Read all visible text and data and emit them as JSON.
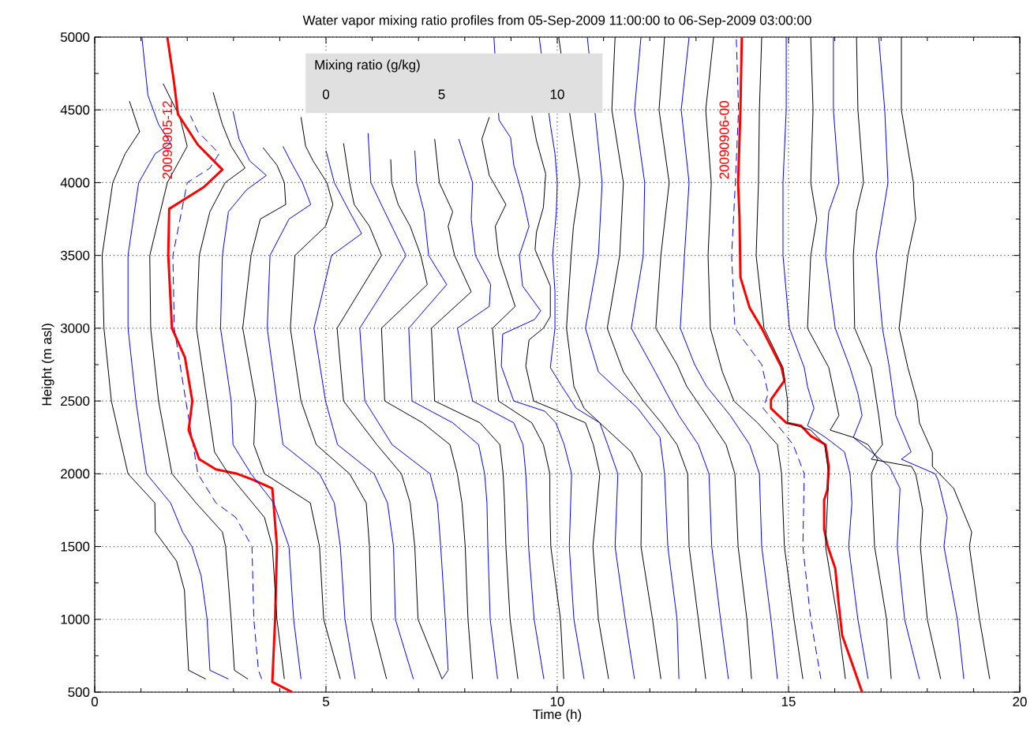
{
  "chart_data": {
    "type": "line",
    "title": "Water vapor mixing ratio profiles from 05-Sep-2009 11:00:00 to 06-Sep-2009 03:00:00",
    "xlabel": "Time (h)",
    "ylabel": "Height (m asl)",
    "xlim": [
      0,
      20
    ],
    "ylim": [
      500,
      5000
    ],
    "xticks": [
      0,
      5,
      10,
      15,
      20
    ],
    "yticks": [
      500,
      1000,
      1500,
      2000,
      2500,
      3000,
      3500,
      4000,
      4500,
      5000
    ],
    "grid": true,
    "marker": "none",
    "line_style": "solid",
    "x2label": "Mixing ratio (g/kg)",
    "x2lim": [
      -10,
      30
    ],
    "x2ticks": [
      0,
      5,
      10
    ],
    "series": [
      {
        "color": "#000000",
        "x": [
          2.4,
          2.03,
          1.97,
          1.94,
          1.77,
          1.54,
          1.31,
          1.3,
          0.72,
          0.36,
          0.2,
          0.16,
          0.39,
          0.66,
          0.97,
          0.75
        ],
        "values": [
          590,
          650,
          1000,
          1200,
          1400,
          1500,
          1600,
          1800,
          2000,
          2500,
          3000,
          3500,
          4000,
          4200,
          4350,
          4560
        ]
      },
      {
        "color": "#0000ff",
        "x": [
          2.89,
          2.49,
          2.43,
          2.3,
          2.1,
          1.9,
          1.64,
          1.12,
          0.89,
          0.72,
          0.72,
          0.95,
          1.31,
          1.64,
          1.38,
          1.15,
          1.02
        ],
        "values": [
          590,
          650,
          1000,
          1300,
          1500,
          1600,
          1800,
          2000,
          2500,
          3000,
          3500,
          4000,
          4200,
          4270,
          4400,
          4600,
          5000
        ]
      },
      {
        "color": "#000000",
        "x": [
          3.31,
          3.02,
          2.95,
          2.83,
          2.76,
          2.19,
          1.67,
          1.38,
          1.21,
          1.19,
          1.57,
          2.0,
          1.84,
          1.48
        ],
        "values": [
          590,
          650,
          1000,
          1500,
          1600,
          1800,
          2000,
          2500,
          3000,
          3500,
          4000,
          4250,
          4450,
          4680
        ]
      },
      {
        "color": "#0000ff",
        "line_style": "dashed",
        "x": [
          3.61,
          3.54,
          3.44,
          3.4,
          3.05,
          2.62,
          2.23,
          1.97,
          1.72,
          1.69,
          2.0,
          2.49,
          2.69,
          2.23,
          2.07
        ],
        "values": [
          590,
          650,
          1000,
          1500,
          1700,
          1800,
          2000,
          2500,
          3000,
          3500,
          4000,
          4100,
          4200,
          4350,
          4460
        ]
      },
      {
        "name": "20090905-12",
        "color": "#ff0000",
        "x": [
          4.27,
          3.84,
          3.9,
          3.94,
          3.84,
          3.41,
          3.08,
          2.62,
          2.26,
          2.03,
          2.11,
          1.95,
          1.67,
          1.59,
          1.61,
          2.36,
          2.76,
          2.23,
          1.8,
          1.71,
          1.57
        ],
        "values": [
          500,
          570,
          1000,
          1500,
          1900,
          1960,
          2000,
          2030,
          2100,
          2300,
          2500,
          2800,
          3000,
          3500,
          3820,
          3970,
          4090,
          4260,
          4470,
          4700,
          5000
        ]
      },
      {
        "color": "#000000",
        "x": [
          4.1,
          3.94,
          3.84,
          3.67,
          3.41,
          2.89,
          2.59,
          2.43,
          2.2,
          2.26,
          2.49,
          2.82,
          3.25,
          2.95,
          2.76,
          2.56
        ],
        "values": [
          590,
          1000,
          1500,
          1700,
          1800,
          2000,
          2150,
          2500,
          3000,
          3500,
          3800,
          4000,
          4100,
          4250,
          4400,
          4620
        ]
      },
      {
        "color": "#0000ff",
        "x": [
          4.46,
          4.3,
          4.2,
          3.87,
          3.38,
          2.99,
          2.95,
          2.72,
          2.76,
          2.89,
          3.28,
          3.71,
          3.35,
          3.12,
          2.99
        ],
        "values": [
          590,
          1000,
          1500,
          1800,
          2000,
          2200,
          2500,
          3000,
          3500,
          3800,
          3950,
          4050,
          4150,
          4300,
          4490
        ]
      },
      {
        "color": "#000000",
        "x": [
          5.31,
          4.95,
          4.86,
          4.66,
          3.67,
          3.44,
          3.48,
          3.2,
          3.38,
          3.58,
          4.13,
          4.1,
          3.94,
          3.64
        ],
        "values": [
          590,
          1000,
          1500,
          1800,
          2000,
          2200,
          2500,
          3000,
          3500,
          3750,
          3850,
          4000,
          4120,
          4240
        ]
      },
      {
        "color": "#0000ff",
        "x": [
          5.63,
          5.41,
          5.31,
          5.18,
          4.86,
          4.07,
          3.94,
          3.73,
          3.79,
          4.2,
          4.67,
          4.49,
          4.23,
          4.07
        ],
        "values": [
          590,
          1000,
          1500,
          1800,
          2000,
          2200,
          2500,
          3000,
          3500,
          3750,
          3850,
          4000,
          4150,
          4250
        ]
      },
      {
        "color": "#000000",
        "x": [
          6.31,
          5.98,
          5.94,
          5.87,
          5.51,
          4.79,
          4.46,
          4.23,
          4.33,
          4.99,
          5.15,
          5.02,
          4.72,
          4.56,
          4.46
        ],
        "values": [
          590,
          1000,
          1500,
          1800,
          2000,
          2200,
          2500,
          3000,
          3500,
          3700,
          3850,
          4000,
          4150,
          4250,
          4450
        ]
      },
      {
        "color": "#0000ff",
        "x": [
          6.89,
          6.5,
          6.46,
          6.33,
          6.04,
          5.25,
          4.99,
          4.74,
          5.12,
          5.77,
          5.51,
          5.18,
          5.0
        ],
        "values": [
          590,
          1000,
          1500,
          1800,
          2000,
          2200,
          2500,
          3000,
          3500,
          3650,
          3800,
          4000,
          4220
        ]
      },
      {
        "color": "#000000",
        "x": [
          7.51,
          6.99,
          6.92,
          6.82,
          6.63,
          6.1,
          5.38,
          5.24,
          6.2,
          5.94,
          5.61,
          5.51,
          5.38
        ],
        "values": [
          590,
          1000,
          1500,
          1800,
          2000,
          2200,
          2500,
          3000,
          3500,
          3700,
          3850,
          4000,
          4270
        ]
      },
      {
        "color": "#0000ff",
        "x": [
          7.51,
          7.64,
          7.58,
          7.48,
          7.41,
          7.25,
          6.43,
          5.84,
          5.73,
          6.73,
          6.5,
          6.27,
          5.97,
          5.91
        ],
        "values": [
          590,
          650,
          1000,
          1500,
          1800,
          2000,
          2200,
          2500,
          3000,
          3500,
          3650,
          3800,
          4000,
          4340
        ]
      },
      {
        "color": "#000000",
        "x": [
          8.17,
          8.07,
          8.01,
          7.94,
          7.84,
          7.68,
          7.09,
          6.27,
          6.2,
          7.19,
          7.05,
          6.82,
          6.56,
          6.42,
          6.4
        ],
        "values": [
          590,
          1000,
          1500,
          1800,
          2000,
          2200,
          2350,
          2500,
          3000,
          3300,
          3500,
          3700,
          3850,
          4000,
          4160
        ]
      },
      {
        "color": "#0000ff",
        "x": [
          8.71,
          8.55,
          8.5,
          8.48,
          8.43,
          8.3,
          7.74,
          6.86,
          6.79,
          7.61,
          7.22,
          7.12,
          6.96,
          6.92
        ],
        "values": [
          590,
          1000,
          1500,
          1800,
          2000,
          2200,
          2350,
          2500,
          3000,
          3300,
          3500,
          3800,
          4000,
          4220
        ]
      },
      {
        "color": "#000000",
        "x": [
          9.15,
          8.98,
          8.89,
          8.86,
          8.83,
          8.76,
          8.33,
          7.35,
          7.28,
          8.14,
          7.78,
          7.64,
          7.74,
          7.45,
          7.35
        ],
        "values": [
          590,
          1000,
          1500,
          1800,
          2000,
          2200,
          2350,
          2500,
          3000,
          3250,
          3500,
          3700,
          3800,
          4000,
          4300
        ]
      },
      {
        "color": "#0000ff",
        "x": [
          9.71,
          9.5,
          9.38,
          9.35,
          9.32,
          9.26,
          9.06,
          8.17,
          7.84,
          8.53,
          8.56,
          8.23,
          8.14,
          8.17,
          7.87
        ],
        "values": [
          590,
          1000,
          1500,
          1800,
          2000,
          2200,
          2350,
          2500,
          3000,
          3150,
          3300,
          3500,
          3750,
          4000,
          4300
        ]
      },
      {
        "color": "#000000",
        "x": [
          10.14,
          10.07,
          9.86,
          9.84,
          9.84,
          9.7,
          9.45,
          8.73,
          8.6,
          9.09,
          8.73,
          8.66,
          8.89,
          8.53,
          8.37,
          8.53
        ],
        "values": [
          590,
          1000,
          1500,
          1800,
          2000,
          2200,
          2350,
          2500,
          3000,
          3150,
          3500,
          3700,
          3850,
          4050,
          4300,
          4450
        ]
      },
      {
        "color": "#0000ff",
        "x": [
          10.58,
          10.36,
          10.26,
          10.31,
          10.15,
          9.97,
          9.73,
          9.06,
          8.79,
          8.82,
          9.51,
          9.64,
          9.25,
          9.18,
          9.39,
          9.25,
          9.06,
          8.99,
          8.74,
          8.63
        ],
        "values": [
          590,
          1000,
          1500,
          2000,
          2200,
          2350,
          2430,
          2500,
          2740,
          2960,
          3060,
          3120,
          3290,
          3500,
          3700,
          3910,
          4120,
          4310,
          4430,
          5000
        ]
      },
      {
        "color": "#000000",
        "x": [
          11.11,
          10.89,
          10.77,
          10.92,
          10.78,
          10.61,
          10.1,
          9.49,
          9.32,
          9.39,
          9.7,
          9.85,
          9.85,
          9.52,
          9.55,
          9.7,
          9.75,
          9.55,
          9.45
        ],
        "values": [
          590,
          1000,
          1500,
          2000,
          2200,
          2350,
          2420,
          2500,
          2740,
          2920,
          3000,
          3080,
          3290,
          3540,
          3660,
          3830,
          4060,
          4290,
          4460
        ]
      },
      {
        "color": "#0000ff",
        "x": [
          11.67,
          11.47,
          11.25,
          11.31,
          11.09,
          10.92,
          10.41,
          10.1,
          9.85,
          9.95,
          9.95,
          9.9,
          9.98,
          10.0,
          9.95,
          9.85,
          9.72,
          9.61
        ],
        "values": [
          590,
          1000,
          1500,
          2000,
          2200,
          2350,
          2450,
          2600,
          2730,
          3000,
          3250,
          3500,
          3800,
          4000,
          4200,
          4400,
          null,
          5000
        ]
      },
      {
        "color": "#000000",
        "x": [
          12.24,
          12.06,
          11.81,
          11.83,
          11.6,
          11.09,
          10.58,
          10.36,
          10.2,
          10.3,
          10.35,
          10.49,
          10.35,
          10.2,
          10.03
        ],
        "values": [
          590,
          1000,
          1500,
          2000,
          2150,
          2300,
          2450,
          2600,
          3000,
          3500,
          3700,
          4000,
          4300,
          null,
          5000
        ]
      },
      {
        "color": "#0000ff",
        "x": [
          12.63,
          12.59,
          12.39,
          12.32,
          12.22,
          11.74,
          10.89,
          10.61,
          10.89,
          10.97,
          10.68,
          10.65
        ],
        "values": [
          590,
          1000,
          1500,
          2000,
          2250,
          2450,
          2700,
          3000,
          3500,
          4000,
          null,
          5000
        ]
      },
      {
        "color": "#000000",
        "x": [
          13.21,
          13.05,
          12.85,
          12.82,
          12.59,
          12.25,
          11.86,
          11.43,
          11.08,
          11.35,
          11.43,
          11.18,
          11.25
        ],
        "values": [
          590,
          1000,
          1500,
          2000,
          2200,
          2350,
          2500,
          2700,
          3000,
          3500,
          4000,
          4500,
          5000
        ]
      },
      {
        "color": "#0000ff",
        "x": [
          13.7,
          13.53,
          13.34,
          13.28,
          13.05,
          12.63,
          12.37,
          12.12,
          11.6,
          11.86,
          11.89,
          11.67,
          11.81
        ],
        "values": [
          590,
          1000,
          1500,
          2000,
          2200,
          2400,
          2550,
          2700,
          3000,
          3500,
          4000,
          4500,
          5000
        ]
      },
      {
        "color": "#000000",
        "x": [
          14.2,
          14.1,
          13.91,
          13.84,
          13.65,
          13.23,
          12.8,
          12.59,
          12.13,
          12.24,
          12.42,
          12.2,
          12.32
        ],
        "values": [
          590,
          1000,
          1500,
          2000,
          2200,
          2400,
          2600,
          2750,
          3000,
          3500,
          4000,
          4500,
          5000
        ]
      },
      {
        "color": "#0000ff",
        "x": [
          14.76,
          14.62,
          14.42,
          14.37,
          14.16,
          13.74,
          13.23,
          12.97,
          12.66,
          12.75,
          12.85,
          12.68,
          12.85
        ],
        "values": [
          590,
          1000,
          1500,
          2000,
          2200,
          2400,
          2600,
          2750,
          3000,
          3500,
          4000,
          4500,
          5000
        ]
      },
      {
        "color": "#000000",
        "x": [
          15.31,
          15.12,
          14.91,
          14.85,
          14.76,
          14.33,
          13.82,
          13.57,
          13.31,
          13.26,
          13.33,
          13.21,
          13.38
        ],
        "values": [
          590,
          1000,
          1500,
          2000,
          2200,
          2350,
          2500,
          2700,
          3000,
          3500,
          4000,
          4500,
          5000
        ]
      },
      {
        "color": "#0000ff",
        "line_style": "dashed",
        "x": [
          15.7,
          15.48,
          15.31,
          15.34,
          15.1,
          14.85,
          14.45,
          14.56,
          14.42,
          13.84,
          13.77,
          13.85,
          13.92,
          13.87
        ],
        "values": [
          590,
          1000,
          1500,
          2000,
          2200,
          2300,
          2450,
          2550,
          2750,
          3000,
          3500,
          4000,
          4500,
          5000
        ]
      },
      {
        "name": "20090906-00",
        "color": "#ff0000",
        "x": [
          16.59,
          16.37,
          16.16,
          16.09,
          16.01,
          15.84,
          15.77,
          15.77,
          15.84,
          15.87,
          15.8,
          15.48,
          15.27,
          14.95,
          14.62,
          14.62,
          14.91,
          14.85,
          14.42,
          14.16,
          13.96,
          13.94,
          13.91,
          13.96,
          13.99
        ],
        "values": [
          500,
          700,
          890,
          1090,
          1350,
          1510,
          1620,
          1820,
          1890,
          2050,
          2200,
          2260,
          2330,
          2350,
          2450,
          2510,
          2640,
          2730,
          3000,
          3140,
          3350,
          3760,
          4000,
          4500,
          5000
        ]
      },
      {
        "color": "#000000",
        "x": [
          16.23,
          16.06,
          15.8,
          15.87,
          15.78,
          15.48,
          14.98,
          14.98,
          14.88,
          14.47,
          14.3,
          14.35,
          14.37,
          14.42
        ],
        "values": [
          590,
          1000,
          1500,
          2000,
          2200,
          2300,
          2350,
          2500,
          2730,
          3000,
          3500,
          4000,
          4500,
          5000
        ]
      },
      {
        "color": "#0000ff",
        "x": [
          16.72,
          16.5,
          16.3,
          16.37,
          16.33,
          16.21,
          15.8,
          15.41,
          15.55,
          15.41,
          15.34,
          15.02,
          14.88,
          14.88,
          14.95,
          14.95
        ],
        "values": [
          590,
          1000,
          1500,
          1800,
          2000,
          2150,
          2250,
          2330,
          2450,
          2600,
          2730,
          3000,
          3500,
          4000,
          4500,
          5000
        ]
      },
      {
        "color": "#000000",
        "x": [
          17.22,
          17.12,
          16.86,
          16.79,
          16.93,
          16.72,
          16.4,
          15.9,
          16.09,
          15.87,
          15.41,
          15.48,
          15.61,
          15.48,
          15.53,
          15.48
        ],
        "values": [
          590,
          1000,
          1500,
          2000,
          2100,
          2200,
          2250,
          2300,
          2400,
          2730,
          3000,
          3500,
          3750,
          4000,
          4500,
          5000
        ]
      },
      {
        "color": "#0000ff",
        "x": [
          17.83,
          17.51,
          17.35,
          17.41,
          17.18,
          16.79,
          16.4,
          16.59,
          16.5,
          16.33,
          16.01,
          15.8,
          15.87,
          16.09,
          15.97,
          15.97
        ],
        "values": [
          590,
          1000,
          1500,
          1900,
          2050,
          2150,
          2250,
          2400,
          2550,
          2730,
          3000,
          3500,
          3800,
          4000,
          4500,
          5000
        ]
      },
      {
        "color": "#000000",
        "x": [
          18.29,
          18.0,
          17.85,
          17.9,
          17.75,
          17.66,
          16.79,
          17.03,
          16.95,
          16.79,
          16.43,
          16.4,
          16.47,
          16.62,
          16.5,
          16.47
        ],
        "values": [
          590,
          1000,
          1500,
          1750,
          2000,
          2050,
          2100,
          2200,
          2400,
          2730,
          3000,
          3500,
          3800,
          4000,
          4500,
          5000
        ]
      },
      {
        "color": "#0000ff",
        "x": [
          18.79,
          18.65,
          18.36,
          18.43,
          18.24,
          18.17,
          17.44,
          17.65,
          17.32,
          17.18,
          17.03,
          16.89,
          17.15,
          17.08,
          16.95
        ],
        "values": [
          590,
          1000,
          1500,
          1700,
          1950,
          2000,
          2100,
          2150,
          2400,
          2730,
          3000,
          3500,
          4000,
          4500,
          5000
        ]
      },
      {
        "color": "#000000",
        "x": [
          19.35,
          19.13,
          18.91,
          18.96,
          18.57,
          18.11,
          18.11,
          17.83,
          17.78,
          17.58,
          17.39,
          17.58,
          17.75,
          17.71,
          17.7,
          17.44,
          17.44
        ],
        "values": [
          590,
          1000,
          1500,
          1600,
          1900,
          2050,
          2150,
          2350,
          2500,
          2730,
          3000,
          3500,
          3750,
          3900,
          4000,
          4500,
          5000
        ]
      }
    ]
  }
}
